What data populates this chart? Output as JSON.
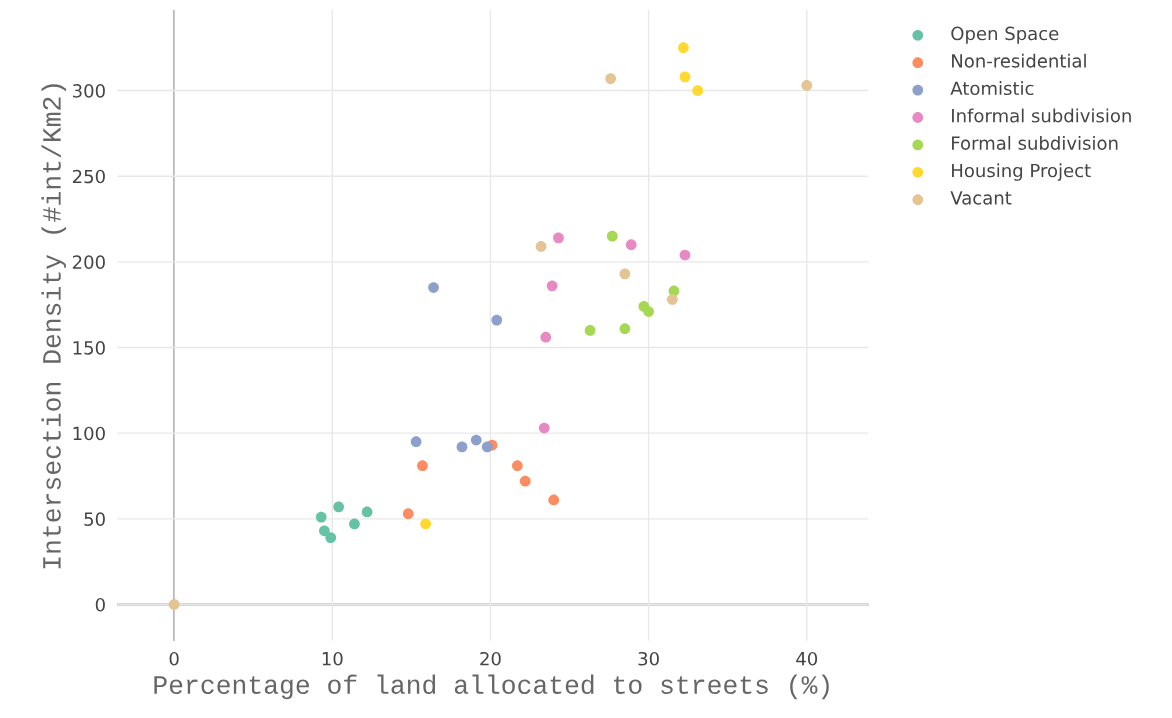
{
  "chart_data": {
    "type": "scatter",
    "xlabel": "Percentage of land allocated to streets (%)",
    "ylabel": "Intersection Density (#int/Km2)",
    "xlim": [
      -3.6,
      43.9
    ],
    "ylim": [
      -21,
      347
    ],
    "xticks": [
      0,
      10,
      20,
      30,
      40
    ],
    "yticks": [
      0,
      50,
      100,
      150,
      200,
      250,
      300
    ],
    "grid": true,
    "legend": "top right",
    "marker": "circle",
    "series": [
      {
        "name": "Open Space",
        "color": "#66c2a5",
        "x": [
          9.3,
          9.5,
          9.9,
          10.4,
          11.4,
          12.2
        ],
        "values": [
          51,
          43,
          39,
          57,
          47,
          54
        ]
      },
      {
        "name": "Non-residential",
        "color": "#fc8d62",
        "x": [
          14.8,
          15.7,
          20.1,
          21.7,
          22.2,
          24.0
        ],
        "values": [
          53,
          81,
          93,
          81,
          72,
          61
        ]
      },
      {
        "name": "Atomistic",
        "color": "#8da0cb",
        "x": [
          15.3,
          16.4,
          18.2,
          19.1,
          19.8,
          20.4
        ],
        "values": [
          95,
          185,
          92,
          96,
          92,
          166
        ]
      },
      {
        "name": "Informal subdivision",
        "color": "#e78ac3",
        "x": [
          23.4,
          23.5,
          23.9,
          24.3,
          28.9,
          32.3
        ],
        "values": [
          103,
          156,
          186,
          214,
          210,
          204
        ]
      },
      {
        "name": "Formal subdivision",
        "color": "#a6d854",
        "x": [
          26.3,
          27.7,
          28.5,
          29.7,
          30.0,
          31.6
        ],
        "values": [
          160,
          215,
          161,
          174,
          171,
          183
        ]
      },
      {
        "name": "Housing Project",
        "color": "#ffd92f",
        "x": [
          15.9,
          32.2,
          32.3,
          33.1
        ],
        "values": [
          47,
          325,
          308,
          300
        ]
      },
      {
        "name": "Vacant",
        "color": "#e5c494",
        "x": [
          0,
          23.2,
          27.6,
          28.5,
          31.5,
          40
        ],
        "values": [
          0,
          209,
          307,
          193,
          178,
          303
        ]
      }
    ]
  }
}
